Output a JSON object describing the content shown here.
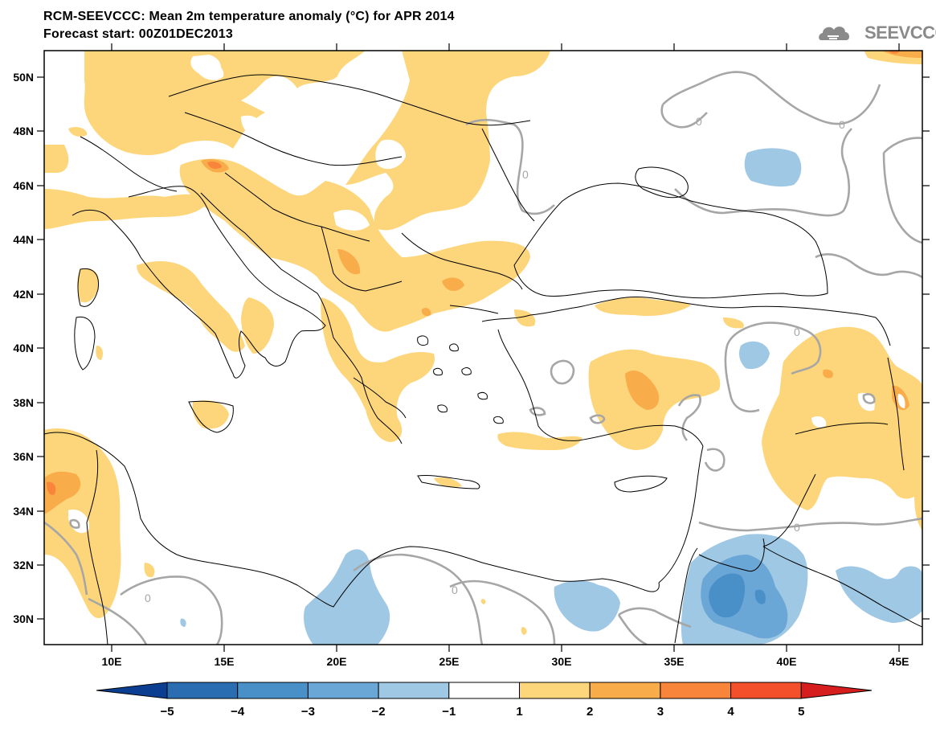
{
  "header": {
    "title": "RCM-SEEVCCC: Mean 2m temperature anomaly (°C) for APR 2014",
    "subtitle": "Forecast start: 00Z01DEC2013",
    "logo_text": "SEEVCCC"
  },
  "map": {
    "projection": "lat-lon",
    "lon_range": [
      7,
      46
    ],
    "lat_range": [
      29,
      51
    ],
    "lat_ticks": [
      "50N",
      "48N",
      "46N",
      "44N",
      "42N",
      "40N",
      "38N",
      "36N",
      "34N",
      "32N",
      "30N"
    ],
    "lon_ticks": [
      "10E",
      "15E",
      "20E",
      "25E",
      "30E",
      "35E",
      "40E",
      "45E"
    ],
    "contour_label": "0",
    "contour_color": "#a6a6a6",
    "coast_color": "#000000"
  },
  "colorbar": {
    "labels": [
      "−5",
      "−4",
      "−3",
      "−2",
      "−1",
      "1",
      "2",
      "3",
      "4",
      "5"
    ],
    "colors": [
      "#0b3d91",
      "#2b6db1",
      "#4a90c8",
      "#6aa6d6",
      "#9fc8e4",
      "#ffffff",
      "#fdd67c",
      "#f9ac4a",
      "#f8853a",
      "#f4502b",
      "#d61e1e"
    ]
  }
}
